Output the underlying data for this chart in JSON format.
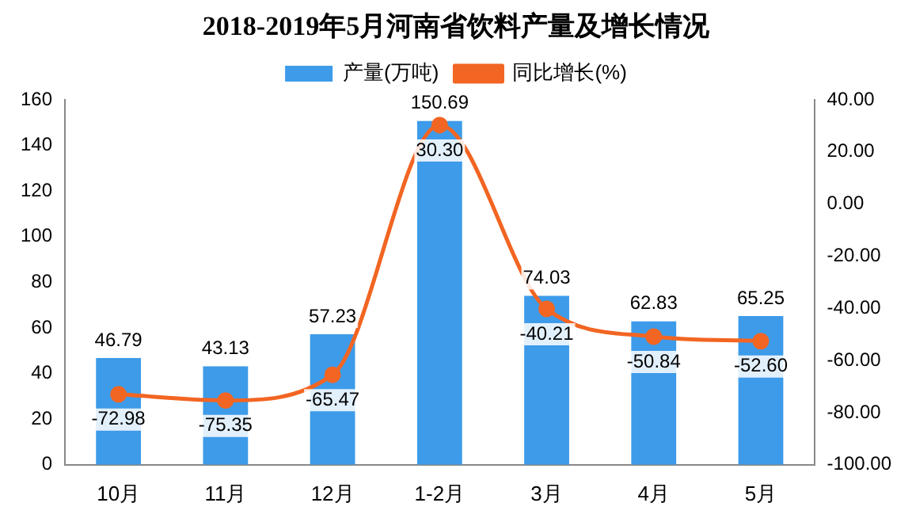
{
  "chart_data": {
    "type": "bar",
    "title": "2018-2019年5月河南省饮料产量及增长情况",
    "categories": [
      "10月",
      "11月",
      "12月",
      "1-2月",
      "3月",
      "4月",
      "5月"
    ],
    "series": [
      {
        "name": "产量(万吨)",
        "color": "#3d9be9",
        "values": [
          46.79,
          43.13,
          57.23,
          150.69,
          74.03,
          62.83,
          65.25
        ]
      },
      {
        "name": "同比增长(%)",
        "type": "line",
        "axis": "y2",
        "color": "#f26522",
        "marker": "circle",
        "values": [
          -72.98,
          -75.35,
          -65.47,
          30.3,
          -40.21,
          -50.84,
          -52.6
        ],
        "value_labels": [
          "-72.98",
          "-75.35",
          "-65.47",
          "30.30",
          "-40.21",
          "-50.84",
          "-52.60"
        ]
      }
    ],
    "ylim": [
      0,
      160
    ],
    "yticks": [
      0,
      20,
      40,
      60,
      80,
      100,
      120,
      140,
      160
    ],
    "y2lim": [
      -100,
      40
    ],
    "y2ticks": [
      {
        "value": -100,
        "label": "-100.00"
      },
      {
        "value": -80,
        "label": "-80.00"
      },
      {
        "value": -60,
        "label": "-60.00"
      },
      {
        "value": -40,
        "label": "-40.00"
      },
      {
        "value": -20,
        "label": "-20.00"
      },
      {
        "value": 0,
        "label": "0.00"
      },
      {
        "value": 20,
        "label": "20.00"
      },
      {
        "value": 40,
        "label": "40.00"
      }
    ],
    "data_labels": true,
    "grid": false,
    "legend": "top"
  }
}
